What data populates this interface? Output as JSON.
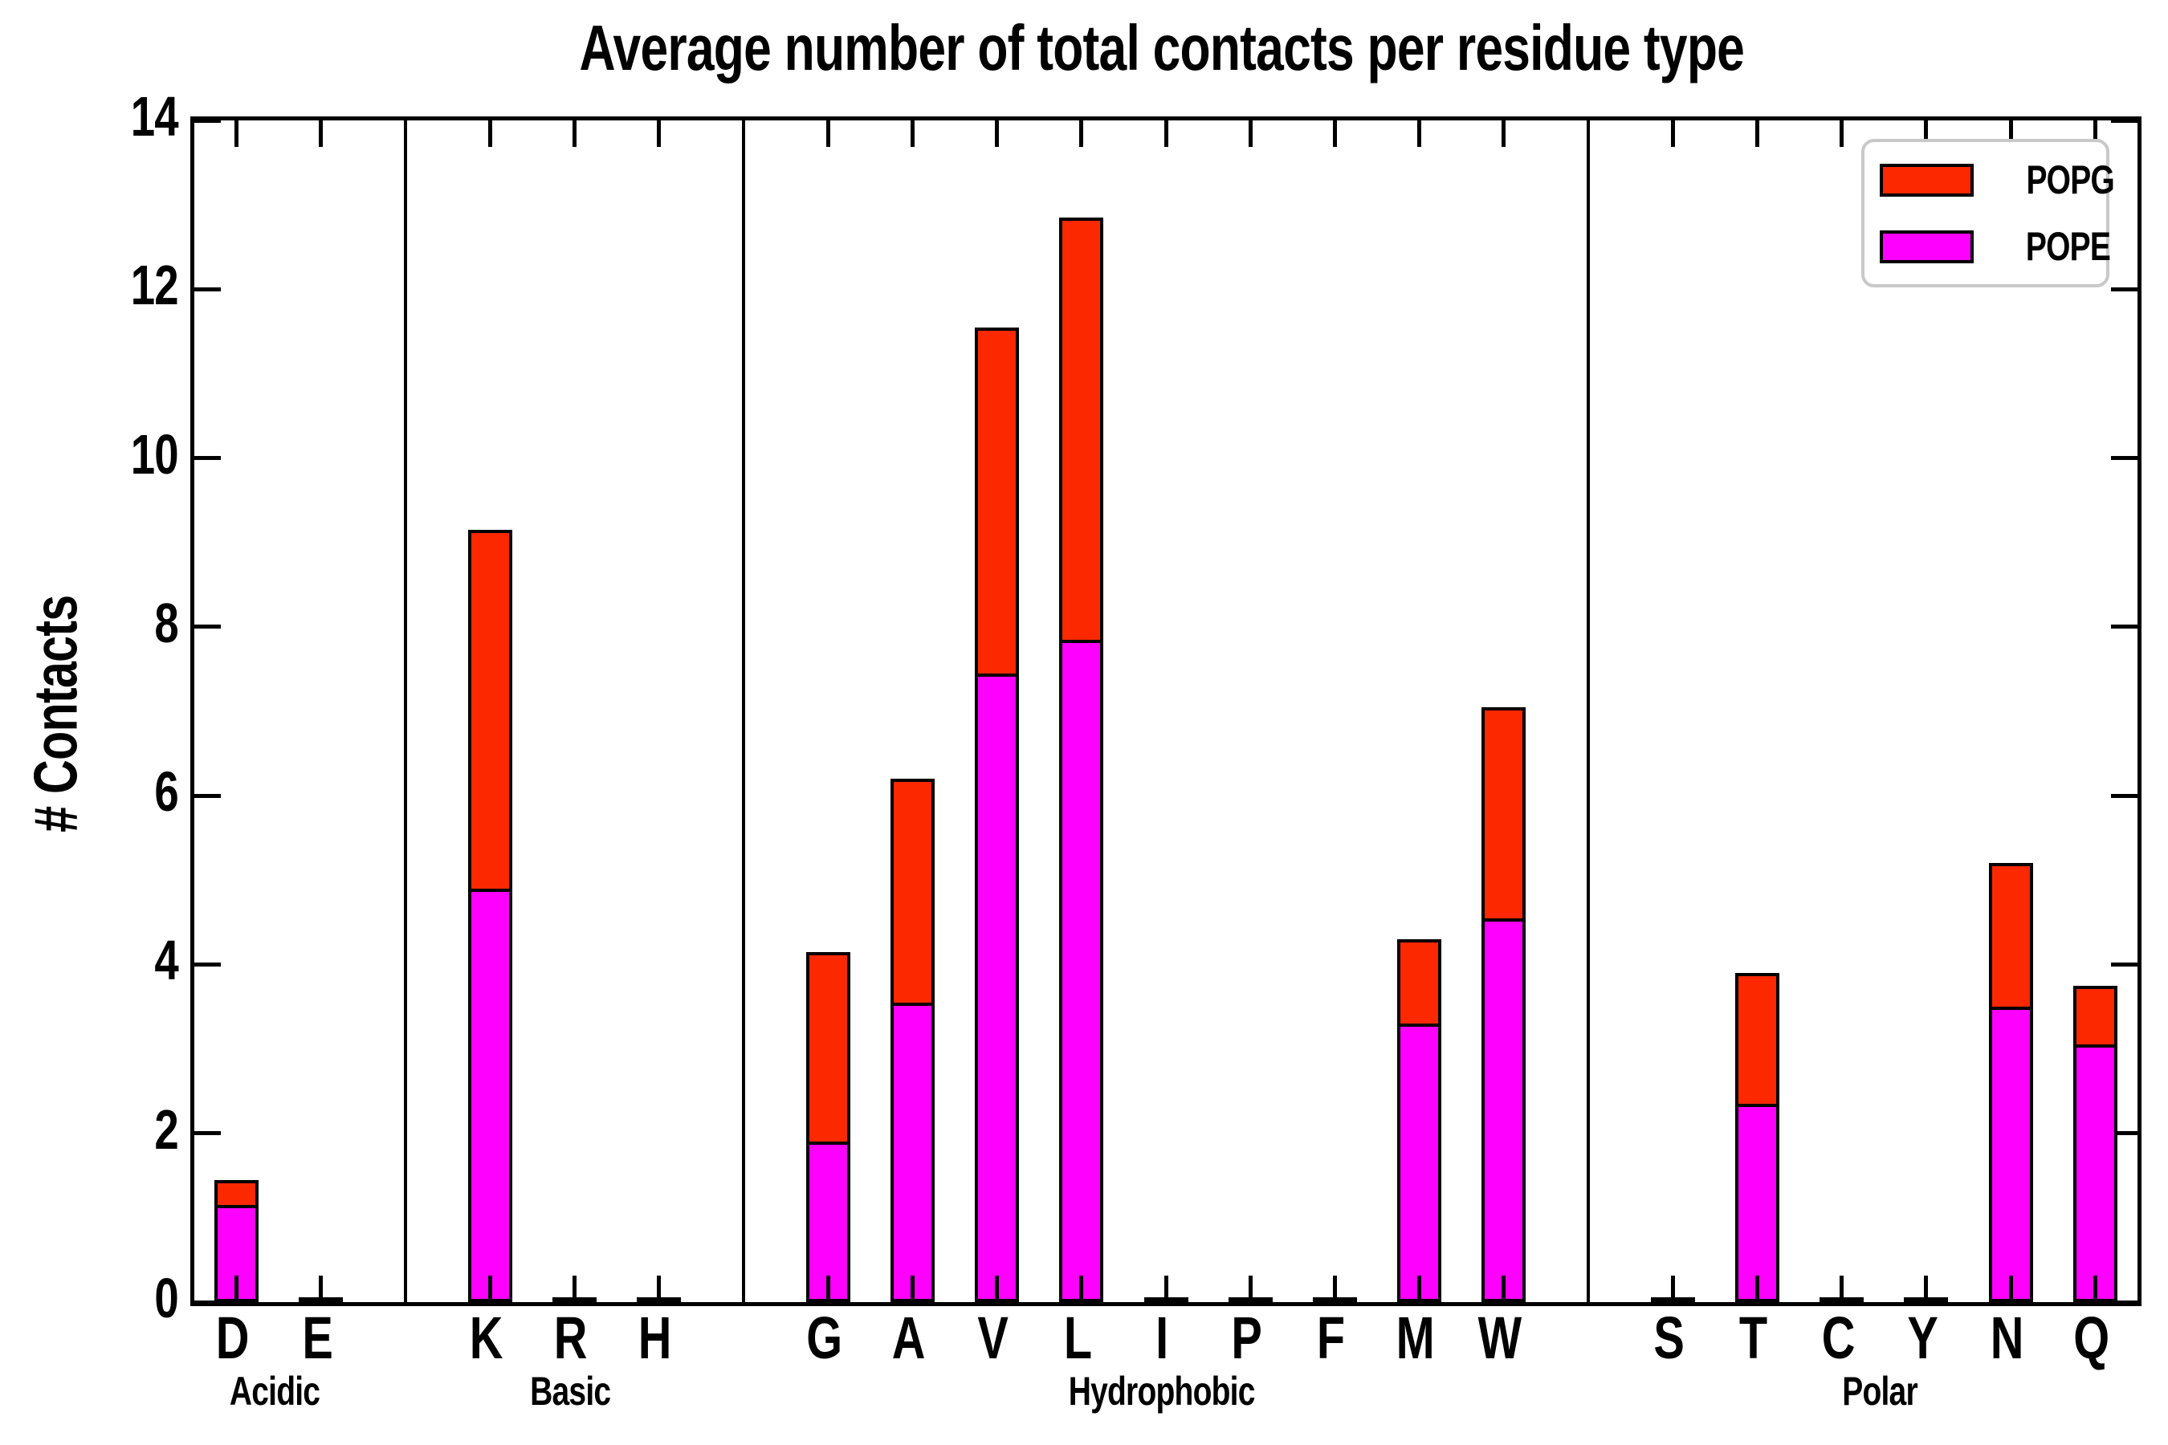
{
  "title": "Average number of total contacts per residue type",
  "ylabel": "# Contacts",
  "legend": [
    {
      "label": "POPG",
      "color": "#fb2800"
    },
    {
      "label": "POPE",
      "color": "#fe00fe"
    }
  ],
  "colors": {
    "popg_red": "#fb2800",
    "pope_magenta": "#fe00fe",
    "axis": "#000000",
    "legend_border": "#c9c9c9"
  },
  "chart_data": {
    "type": "bar",
    "stacked": true,
    "title": "Average number of total contacts per residue type",
    "xlabel": "",
    "ylabel": "# Contacts",
    "ylim": [
      0,
      14
    ],
    "yticks": [
      0,
      2,
      4,
      6,
      8,
      10,
      12,
      14
    ],
    "grid": false,
    "legend_position": "upper right",
    "categories": [
      "D",
      "E",
      "K",
      "R",
      "H",
      "G",
      "A",
      "V",
      "L",
      "I",
      "P",
      "F",
      "M",
      "W",
      "S",
      "T",
      "C",
      "Y",
      "N",
      "Q"
    ],
    "groups": [
      {
        "label": "Acidic",
        "residues": [
          "D",
          "E"
        ]
      },
      {
        "label": "Basic",
        "residues": [
          "K",
          "R",
          "H"
        ]
      },
      {
        "label": "Hydrophobic",
        "residues": [
          "G",
          "A",
          "V",
          "L",
          "I",
          "P",
          "F",
          "M",
          "W"
        ]
      },
      {
        "label": "Polar",
        "residues": [
          "S",
          "T",
          "C",
          "Y",
          "N",
          "Q"
        ]
      }
    ],
    "series": [
      {
        "name": "POPG",
        "color": "#fb2800",
        "values": [
          0.3,
          0.02,
          4.25,
          0.02,
          0.02,
          2.25,
          2.65,
          4.1,
          5.0,
          0.02,
          0.03,
          0.03,
          1.0,
          2.5,
          0.03,
          1.55,
          0.01,
          0.03,
          1.7,
          0.7
        ]
      },
      {
        "name": "POPE",
        "color": "#fe00fe",
        "values": [
          1.15,
          0.03,
          4.9,
          0.02,
          0.02,
          1.9,
          3.55,
          7.45,
          7.85,
          0.02,
          0.03,
          0.03,
          3.3,
          4.55,
          0.03,
          2.35,
          0.02,
          0.03,
          3.5,
          3.05
        ]
      }
    ]
  }
}
